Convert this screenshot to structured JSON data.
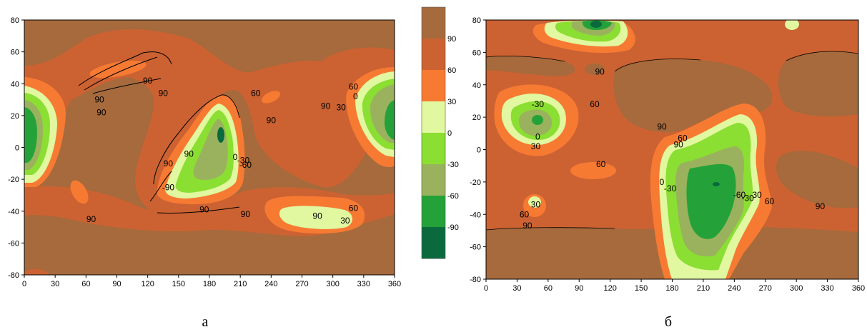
{
  "chart_data": [
    {
      "type": "heatmap",
      "panel_label": "а",
      "xlim": [
        0,
        360
      ],
      "ylim": [
        -80,
        80
      ],
      "x_ticks": [
        "0",
        "30",
        "60",
        "90",
        "120",
        "150",
        "180",
        "210",
        "240",
        "270",
        "300",
        "330",
        "360"
      ],
      "y_ticks": [
        "80",
        "60",
        "40",
        "20",
        "0",
        "-20",
        "-40",
        "-60",
        "-80"
      ],
      "contour_labels": [
        {
          "text": "90",
          "x": 120,
          "y": 42
        },
        {
          "text": "90",
          "x": 135,
          "y": 34
        },
        {
          "text": "90",
          "x": 73,
          "y": 30
        },
        {
          "text": "90",
          "x": 75,
          "y": 22
        },
        {
          "text": "60",
          "x": 225,
          "y": 34
        },
        {
          "text": "90",
          "x": 293,
          "y": 26
        },
        {
          "text": "90",
          "x": 240,
          "y": 17
        },
        {
          "text": "60",
          "x": 320,
          "y": 38
        },
        {
          "text": "0",
          "x": 322,
          "y": 32
        },
        {
          "text": "30",
          "x": 308,
          "y": 25
        },
        {
          "text": "90",
          "x": 160,
          "y": -4
        },
        {
          "text": "90",
          "x": 140,
          "y": -10
        },
        {
          "text": "-90",
          "x": 140,
          "y": -25
        },
        {
          "text": "0",
          "x": 205,
          "y": -6
        },
        {
          "text": "-30",
          "x": 213,
          "y": -8
        },
        {
          "text": "-60",
          "x": 215,
          "y": -11
        },
        {
          "text": "90",
          "x": 175,
          "y": -39
        },
        {
          "text": "90",
          "x": 215,
          "y": -42
        },
        {
          "text": "90",
          "x": 65,
          "y": -45
        },
        {
          "text": "60",
          "x": 320,
          "y": -38
        },
        {
          "text": "90",
          "x": 285,
          "y": -43
        },
        {
          "text": "30",
          "x": 312,
          "y": -46
        }
      ]
    },
    {
      "type": "heatmap",
      "panel_label": "б",
      "xlim": [
        0,
        360
      ],
      "ylim": [
        -80,
        80
      ],
      "x_ticks": [
        "0",
        "30",
        "60",
        "90",
        "120",
        "150",
        "180",
        "210",
        "240",
        "270",
        "300",
        "330",
        "360"
      ],
      "y_ticks": [
        "80",
        "60",
        "40",
        "20",
        "0",
        "-20",
        "-40",
        "-60",
        "-80"
      ],
      "contour_labels": [
        {
          "text": "90",
          "x": 110,
          "y": 48
        },
        {
          "text": "-30",
          "x": 50,
          "y": 28
        },
        {
          "text": "60",
          "x": 105,
          "y": 28
        },
        {
          "text": "0",
          "x": 50,
          "y": 8
        },
        {
          "text": "30",
          "x": 48,
          "y": 2
        },
        {
          "text": "90",
          "x": 170,
          "y": 14
        },
        {
          "text": "60",
          "x": 190,
          "y": 7
        },
        {
          "text": "90",
          "x": 186,
          "y": 3
        },
        {
          "text": "60",
          "x": 111,
          "y": -9
        },
        {
          "text": "0",
          "x": 170,
          "y": -20
        },
        {
          "text": "-30",
          "x": 178,
          "y": -24
        },
        {
          "text": "-60",
          "x": 245,
          "y": -28
        },
        {
          "text": "-30",
          "x": 253,
          "y": -30
        },
        {
          "text": "30",
          "x": 262,
          "y": -28
        },
        {
          "text": "60",
          "x": 274,
          "y": -32
        },
        {
          "text": "90",
          "x": 323,
          "y": -35
        },
        {
          "text": "30",
          "x": 48,
          "y": -34
        },
        {
          "text": "60",
          "x": 37,
          "y": -40
        },
        {
          "text": "90",
          "x": 40,
          "y": -47
        }
      ]
    }
  ],
  "colorbar": {
    "labels": [
      "90",
      "60",
      "30",
      "0",
      "-30",
      "-60",
      "-90"
    ],
    "colors": [
      "#a66a3c",
      "#cc6232",
      "#f77a33",
      "#e1f7a0",
      "#8bde32",
      "#9ab25d",
      "#24a239",
      "#0b6a3d"
    ]
  },
  "captions": [
    "а",
    "б"
  ]
}
